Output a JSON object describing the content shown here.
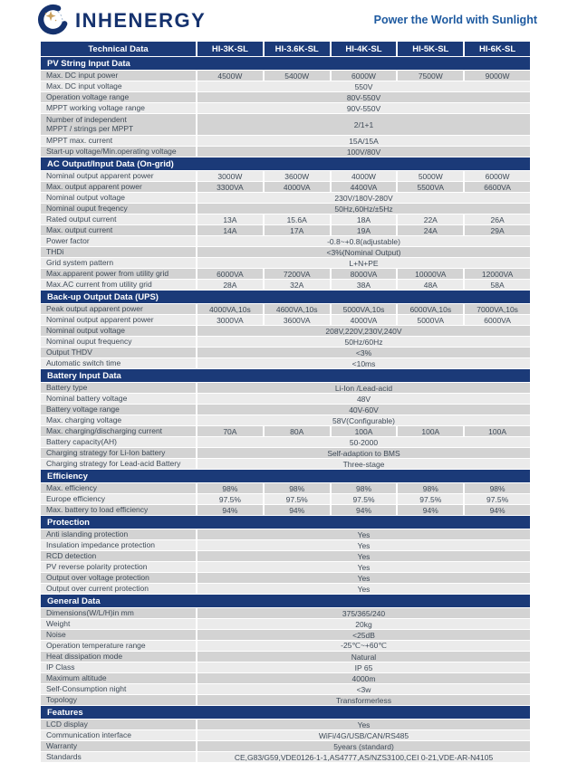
{
  "header": {
    "brand": "INHENERGY",
    "tagline": "Power the World with Sunlight"
  },
  "colors": {
    "navy": "#1b3a78",
    "row_dark": "#d3d3d3",
    "row_light": "#ebebeb",
    "text": "#3e4a57",
    "tagline_blue": "#1e5aa0",
    "logo_navy": "#15326e",
    "logo_gold": "#c9a05e"
  },
  "table": {
    "title_col": "Technical Data",
    "models": [
      "HI-3K-SL",
      "HI-3.6K-SL",
      "HI-4K-SL",
      "HI-5K-SL",
      "HI-6K-SL"
    ],
    "sections": [
      {
        "title": "PV String Input Data",
        "first_shade": "dark",
        "rows": [
          {
            "label": "Max. DC input power",
            "values": [
              "4500W",
              "5400W",
              "6000W",
              "7500W",
              "9000W"
            ]
          },
          {
            "label": "Max. DC input voltage",
            "merged": "550V"
          },
          {
            "label": "Operation voltage range",
            "merged": "80V-550V"
          },
          {
            "label": "MPPT working voltage range",
            "merged": "90V-550V"
          },
          {
            "label": "Number of independent\nMPPT / strings per MPPT",
            "merged": "2/1+1",
            "tall": true
          },
          {
            "label": "MPPT max. current",
            "merged": "15A/15A"
          },
          {
            "label": "Start-up voltage/Min.operating voltage",
            "merged": "100V/80V"
          }
        ]
      },
      {
        "title": "AC Output/Input Data (On-grid)",
        "first_shade": "light",
        "rows": [
          {
            "label": "Nominal output apparent power",
            "values": [
              "3000W",
              "3600W",
              "4000W",
              "5000W",
              "6000W"
            ]
          },
          {
            "label": "Max. output apparent power",
            "values": [
              "3300VA",
              "4000VA",
              "4400VA",
              "5500VA",
              "6600VA"
            ]
          },
          {
            "label": "Nominal output voltage",
            "merged": "230V/180V-280V"
          },
          {
            "label": "Nominal ouput freqency",
            "merged": "50Hz,60Hz/±5Hz"
          },
          {
            "label": "Rated output current",
            "values": [
              "13A",
              "15.6A",
              "18A",
              "22A",
              "26A"
            ]
          },
          {
            "label": "Max. output current",
            "values": [
              "14A",
              "17A",
              "19A",
              "24A",
              "29A"
            ]
          },
          {
            "label": "Power factor",
            "merged": "-0.8~+0.8(adjustable)"
          },
          {
            "label": "THDi",
            "merged": "<3%(Nominal Output)"
          },
          {
            "label": "Grid system pattern",
            "merged": "L+N+PE"
          },
          {
            "label": "Max.apparent power from utility grid",
            "values": [
              "6000VA",
              "7200VA",
              "8000VA",
              "10000VA",
              "12000VA"
            ]
          },
          {
            "label": "Max.AC current from utility grid",
            "values": [
              "28A",
              "32A",
              "38A",
              "48A",
              "58A"
            ]
          }
        ]
      },
      {
        "title": "Back-up Output Data (UPS)",
        "first_shade": "dark",
        "rows": [
          {
            "label": "Peak output apparent power",
            "values": [
              "4000VA,10s",
              "4600VA,10s",
              "5000VA,10s",
              "6000VA,10s",
              "7000VA,10s"
            ]
          },
          {
            "label": "Nominal output apparent power",
            "values": [
              "3000VA",
              "3600VA",
              "4000VA",
              "5000VA",
              "6000VA"
            ]
          },
          {
            "label": "Nominal output voltage",
            "merged": "208V,220V,230V,240V"
          },
          {
            "label": "Nominal ouput frequency",
            "merged": "50Hz/60Hz"
          },
          {
            "label": "Output THDV",
            "merged": "<3%"
          },
          {
            "label": "Automatic switch time",
            "merged": "<10ms"
          }
        ]
      },
      {
        "title": "Battery Input Data",
        "first_shade": "dark",
        "rows": [
          {
            "label": "Battery type",
            "merged": "Li-Ion /Lead-acid"
          },
          {
            "label": "Nominal battery voltage",
            "merged": "48V"
          },
          {
            "label": "Battery voltage range",
            "merged": "40V-60V"
          },
          {
            "label": "Max. charging voltage",
            "merged": "58V(Configurable)"
          },
          {
            "label": "Max. charging/discharging current",
            "values": [
              "70A",
              "80A",
              "100A",
              "100A",
              "100A"
            ]
          },
          {
            "label": "Battery capacity(AH)",
            "merged": "50-2000"
          },
          {
            "label": "Charging strategy for Li-Ion battery",
            "merged": "Self-adaption to BMS"
          },
          {
            "label": "Charging strategy for Lead-acid Battery",
            "merged": "Three-stage"
          }
        ]
      },
      {
        "title": "Efficiency",
        "first_shade": "dark",
        "rows": [
          {
            "label": "Max. efficiency",
            "values": [
              "98%",
              "98%",
              "98%",
              "98%",
              "98%"
            ]
          },
          {
            "label": "Europe efficiency",
            "values": [
              "97.5%",
              "97.5%",
              "97.5%",
              "97.5%",
              "97.5%"
            ]
          },
          {
            "label": "Max. battery to load efficiency",
            "values": [
              "94%",
              "94%",
              "94%",
              "94%",
              "94%"
            ]
          }
        ]
      },
      {
        "title": "Protection",
        "first_shade": "dark",
        "rows": [
          {
            "label": "Anti islanding protection",
            "merged": "Yes"
          },
          {
            "label": "Insulation impedance protection",
            "merged": "Yes"
          },
          {
            "label": "RCD detection",
            "merged": "Yes"
          },
          {
            "label": "PV reverse polarity protection",
            "merged": "Yes"
          },
          {
            "label": "Output over voltage protection",
            "merged": "Yes"
          },
          {
            "label": "Output over current protection",
            "merged": "Yes"
          }
        ]
      },
      {
        "title": "General Data",
        "first_shade": "dark",
        "rows": [
          {
            "label": "Dimensions(W/L/H)in mm",
            "merged": "375/365/240"
          },
          {
            "label": "Weight",
            "merged": "20kg"
          },
          {
            "label": "Noise",
            "merged": "<25dB"
          },
          {
            "label": "Operation temperature range",
            "merged": "-25℃~+60℃"
          },
          {
            "label": "Heat dissipation mode",
            "merged": "Natural"
          },
          {
            "label": "IP Class",
            "merged": "IP 65"
          },
          {
            "label": "Maximum altitude",
            "merged": "4000m"
          },
          {
            "label": "Self-Consumption night",
            "merged": "<3w"
          },
          {
            "label": "Topology",
            "merged": "Transformerless"
          }
        ]
      },
      {
        "title": "Features",
        "first_shade": "dark",
        "rows": [
          {
            "label": "LCD display",
            "merged": "Yes"
          },
          {
            "label": "Communication interface",
            "merged": "WiFi/4G/USB/CAN/RS485"
          },
          {
            "label": "Warranty",
            "merged": "5years (standard)"
          },
          {
            "label": "Standards",
            "merged": "CE,G83/G59,VDE0126-1-1,AS4777,AS/NZS3100,CEI 0-21,VDE-AR-N4105"
          }
        ]
      }
    ]
  }
}
